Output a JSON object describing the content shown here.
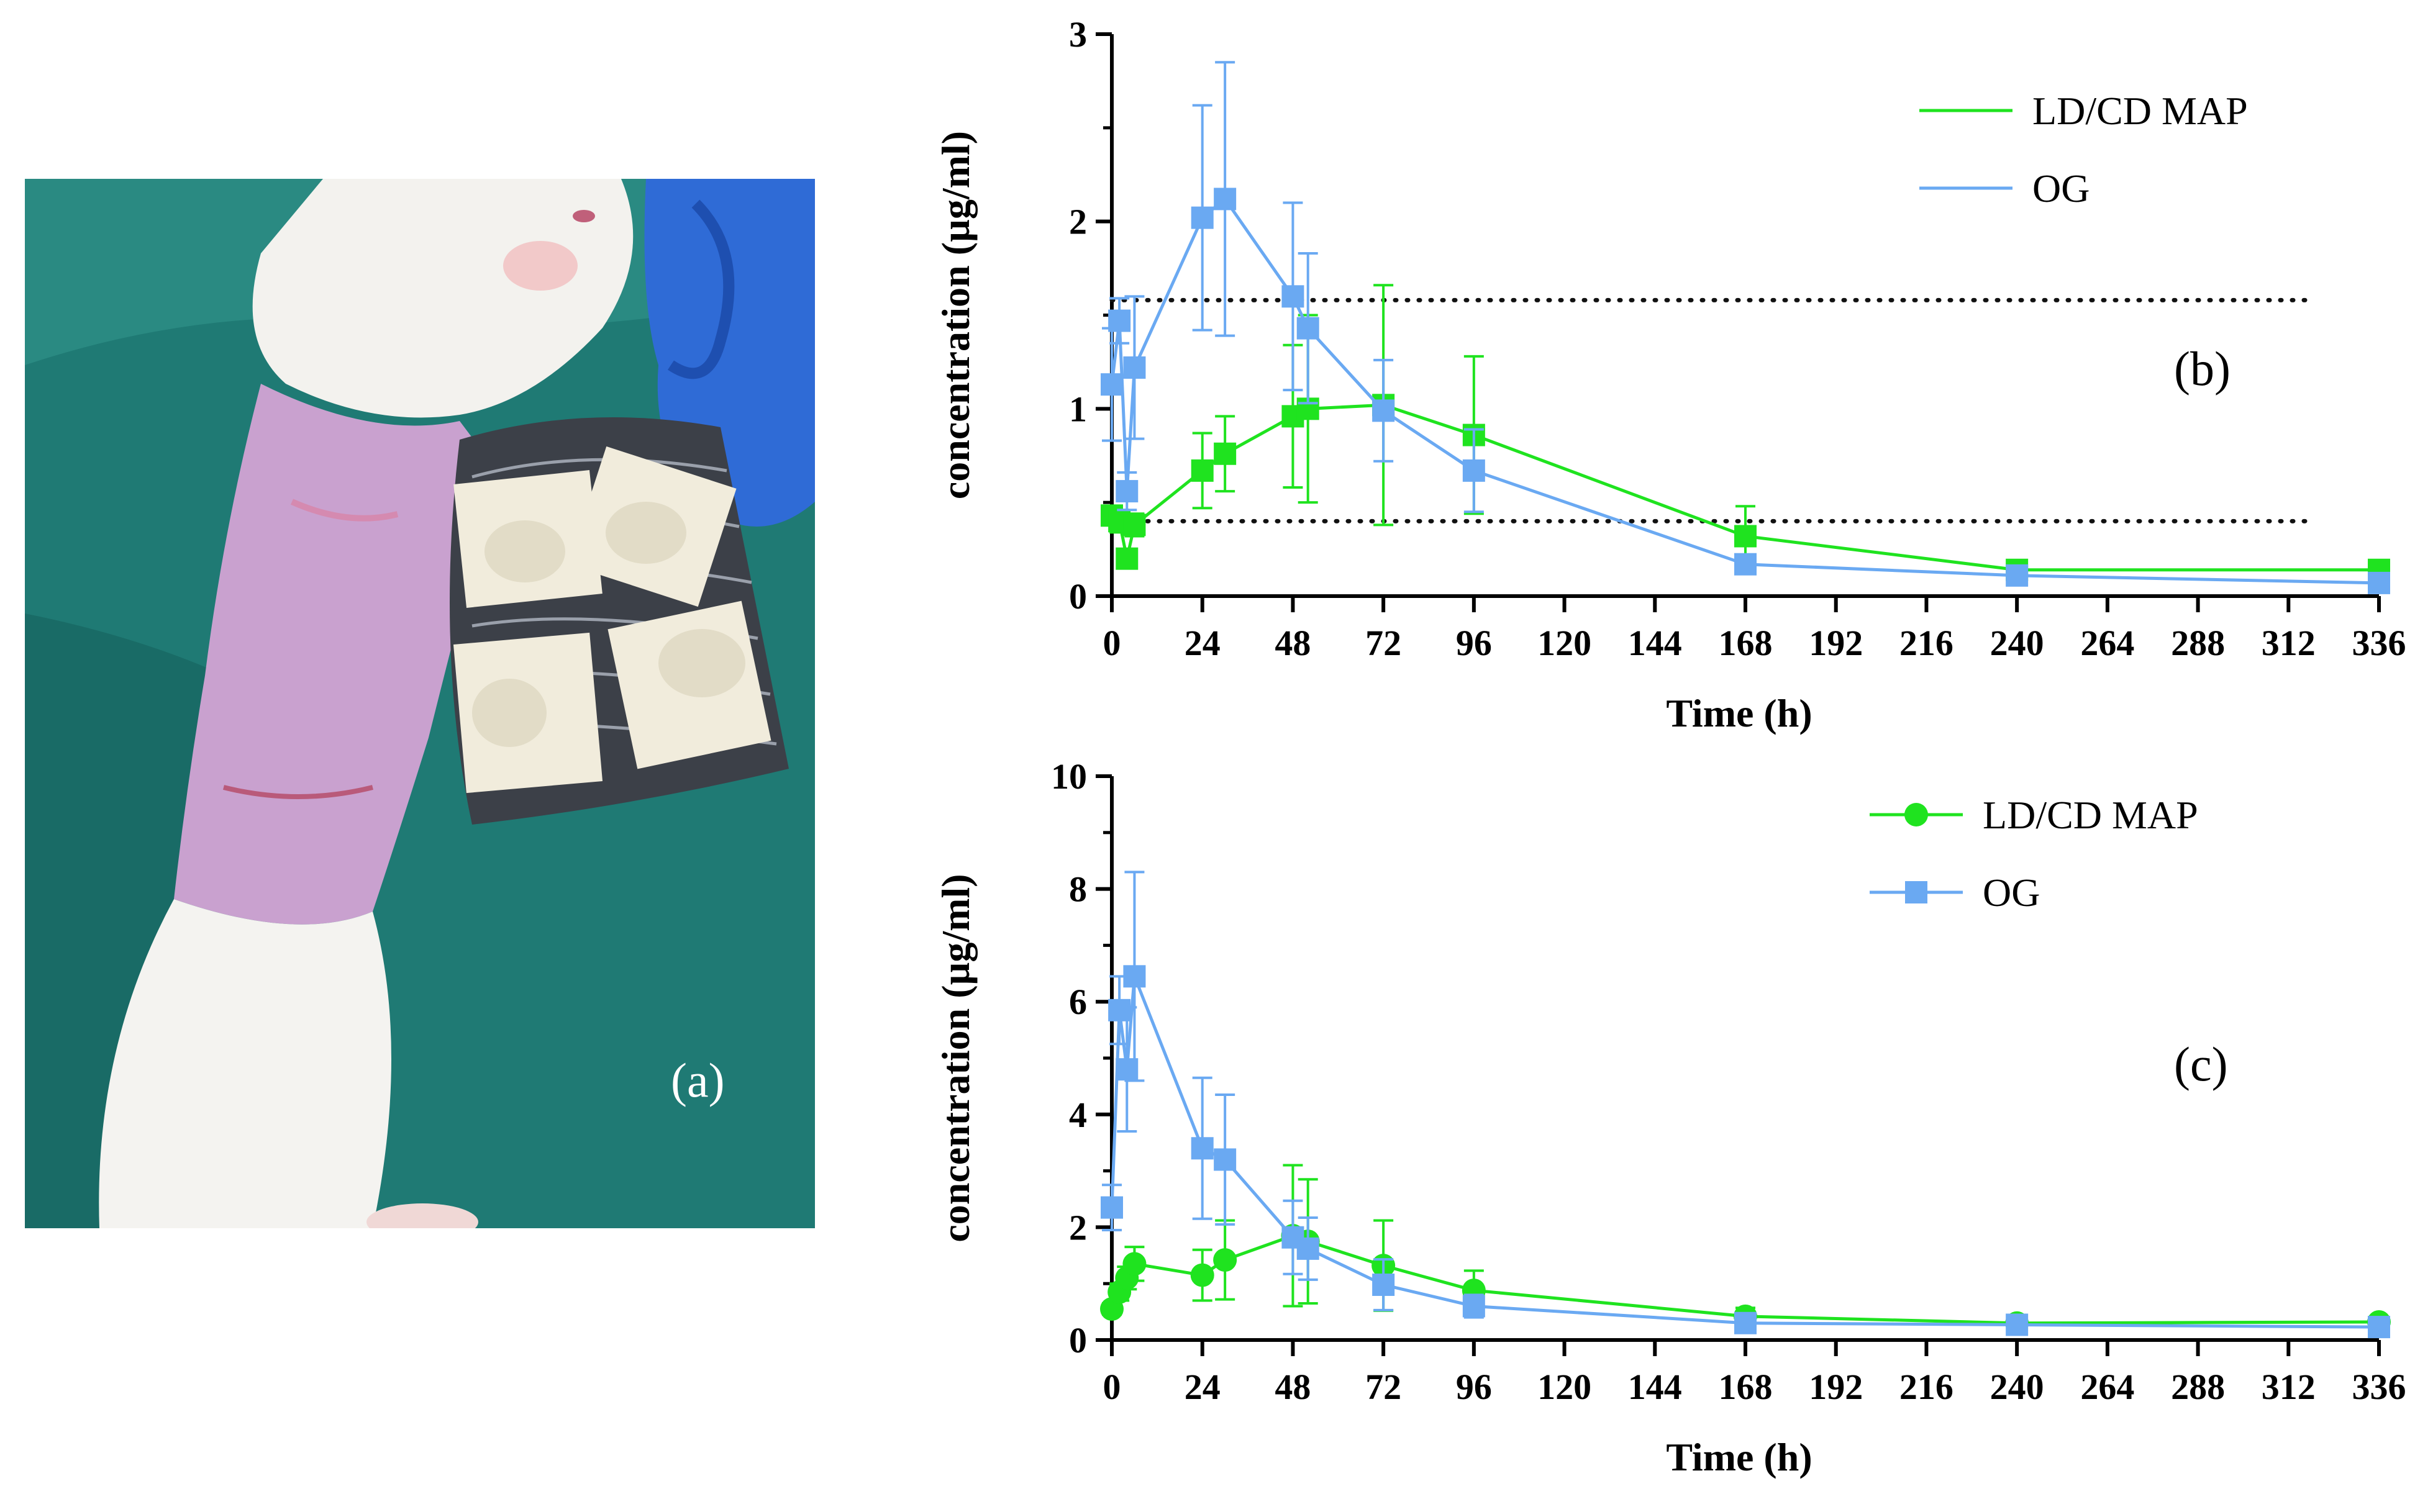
{
  "figure": {
    "panel_a_label": "(a)",
    "panel_a_description_icon": "rat-with-microneedle-patches-photo"
  },
  "colors": {
    "ldcd": "#1fe31f",
    "og": "#6aa9f2",
    "axis": "#000000"
  },
  "chart_data": [
    {
      "id": "b",
      "type": "line",
      "panel_label": "(b)",
      "xlabel": "Time (h)",
      "ylabel": "concentration (µg/ml)",
      "xlim": [
        0,
        336
      ],
      "ylim": [
        0,
        3
      ],
      "xticks": [
        0,
        24,
        48,
        72,
        96,
        120,
        144,
        168,
        192,
        216,
        240,
        264,
        288,
        312,
        336
      ],
      "yticks": [
        0,
        1,
        2,
        3
      ],
      "reference_lines": [
        1.58,
        0.4
      ],
      "legend": {
        "position": "top-right",
        "show_markers": false
      },
      "series": [
        {
          "name": "LD/CD MAP",
          "color": "#1fe31f",
          "marker": "square",
          "x": [
            0,
            2,
            4,
            6,
            24,
            30,
            48,
            52,
            72,
            96,
            168,
            240,
            336
          ],
          "y": [
            0.43,
            0.4,
            0.2,
            0.38,
            0.67,
            0.76,
            0.96,
            1.0,
            1.02,
            0.86,
            0.32,
            0.14,
            0.14
          ],
          "err": [
            0.05,
            0.06,
            0.05,
            0.06,
            0.2,
            0.2,
            0.38,
            0.5,
            0.64,
            0.42,
            0.16,
            0.03,
            0.02
          ]
        },
        {
          "name": "OG",
          "color": "#6aa9f2",
          "marker": "square",
          "x": [
            0,
            2,
            4,
            6,
            24,
            30,
            48,
            52,
            72,
            96,
            168,
            240,
            336
          ],
          "y": [
            1.13,
            1.47,
            0.56,
            1.22,
            2.02,
            2.12,
            1.6,
            1.43,
            0.99,
            0.67,
            0.17,
            0.11,
            0.07
          ],
          "err": [
            0.3,
            0.12,
            0.1,
            0.38,
            0.6,
            0.73,
            0.5,
            0.4,
            0.27,
            0.22,
            0.05,
            0.02,
            0.01
          ]
        }
      ]
    },
    {
      "id": "c",
      "type": "line",
      "panel_label": "(c)",
      "xlabel": "Time (h)",
      "ylabel": "concentration (µg/ml)",
      "xlim": [
        0,
        336
      ],
      "ylim": [
        0,
        10
      ],
      "xticks": [
        0,
        24,
        48,
        72,
        96,
        120,
        144,
        168,
        192,
        216,
        240,
        264,
        288,
        312,
        336
      ],
      "yticks": [
        0,
        2,
        4,
        6,
        8,
        10
      ],
      "reference_lines": [],
      "legend": {
        "position": "top-right",
        "show_markers": true
      },
      "series": [
        {
          "name": "LD/CD MAP",
          "color": "#1fe31f",
          "marker": "circle",
          "x": [
            0,
            2,
            4,
            6,
            24,
            30,
            48,
            52,
            72,
            96,
            168,
            240,
            336
          ],
          "y": [
            0.55,
            0.85,
            1.1,
            1.35,
            1.15,
            1.42,
            1.85,
            1.75,
            1.32,
            0.88,
            0.42,
            0.3,
            0.32
          ],
          "err": [
            0.1,
            0.15,
            0.2,
            0.3,
            0.45,
            0.7,
            1.25,
            1.1,
            0.8,
            0.35,
            0.15,
            0.08,
            0.06
          ]
        },
        {
          "name": "OG",
          "color": "#6aa9f2",
          "marker": "square",
          "x": [
            0,
            2,
            4,
            6,
            24,
            30,
            48,
            52,
            72,
            96,
            168,
            240,
            336
          ],
          "y": [
            2.35,
            5.85,
            4.8,
            6.45,
            3.4,
            3.2,
            1.82,
            1.62,
            0.98,
            0.6,
            0.3,
            0.27,
            0.23
          ],
          "err": [
            0.4,
            0.6,
            1.1,
            1.85,
            1.25,
            1.15,
            0.65,
            0.55,
            0.45,
            0.2,
            0.08,
            0.05,
            0.04
          ]
        }
      ]
    }
  ]
}
